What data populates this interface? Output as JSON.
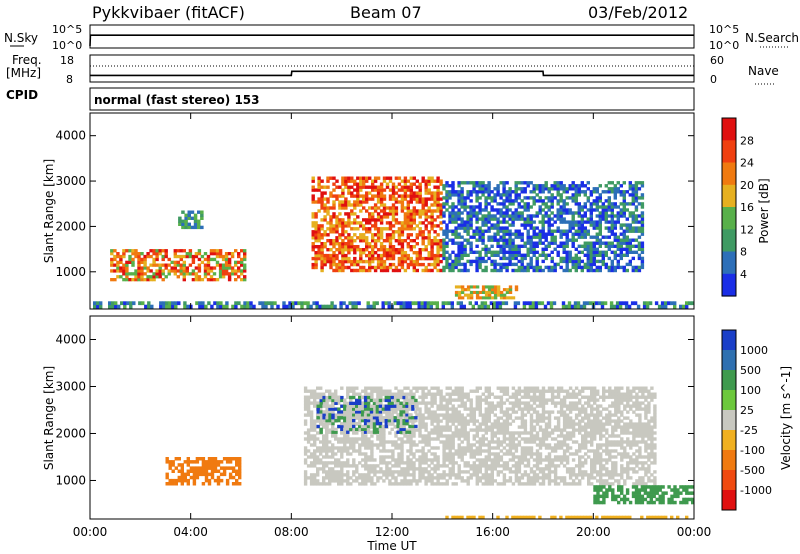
{
  "header": {
    "title": "Pykkvibaer (fitACF)",
    "beam": "Beam 07",
    "date": "03/Feb/2012",
    "cpid_label": "CPID",
    "cpid_text": "normal (fast stereo) 153"
  },
  "nsky_panel": {
    "left_label": "N.Sky",
    "right_label": "N.Search",
    "left_ticks": [
      "10^5",
      "10^0"
    ],
    "right_ticks": [
      "10^5",
      "10^0"
    ]
  },
  "freq_panel": {
    "left_label_1": "Freq.",
    "left_label_2": "[MHz]",
    "right_label": "Nave",
    "left_ticks": [
      "18",
      "8"
    ],
    "right_ticks": [
      "60",
      "0"
    ]
  },
  "x_axis": {
    "label": "Time UT",
    "ticks": [
      "00:00",
      "04:00",
      "08:00",
      "12:00",
      "16:00",
      "20:00",
      "00:00"
    ]
  },
  "y_axis": {
    "label": "Slant Range [km]",
    "ticks": [
      "1000",
      "2000",
      "3000",
      "4000"
    ]
  },
  "colorbars": {
    "power": {
      "label": "Power [dB]",
      "ticks": [
        "4",
        "8",
        "12",
        "16",
        "20",
        "24",
        "28"
      ],
      "colors": [
        "#1a2ee6",
        "#2d6fb8",
        "#3f9a63",
        "#58b04a",
        "#e6b020",
        "#f07a10",
        "#f04010",
        "#e01010"
      ]
    },
    "velocity": {
      "label": "Velocity [m s^-1]",
      "ticks": [
        "1000",
        "500",
        "100",
        "25",
        "-25",
        "-100",
        "-500",
        "-1000"
      ],
      "colors": [
        "#1a3fc8",
        "#2f70b0",
        "#3f9a4e",
        "#6cc83c",
        "#c8c8c0",
        "#f0b020",
        "#f07a10",
        "#f04a10",
        "#e01010"
      ]
    }
  },
  "chart_data": [
    {
      "type": "line",
      "name": "N.Sky / N.Search",
      "x": [
        "00:00",
        "00:01",
        "04:00",
        "08:00",
        "12:00",
        "16:00",
        "20:00",
        "24:00"
      ],
      "y": [
        1,
        1000,
        1000,
        1000,
        1000,
        1000,
        1000,
        1000
      ],
      "ylabel": "N.Sky",
      "ylim_label": [
        "10^0",
        "10^5"
      ]
    },
    {
      "type": "line",
      "name": "Frequency",
      "x": [
        "00:00",
        "08:00",
        "08:01",
        "18:00",
        "18:01",
        "24:00"
      ],
      "y": [
        10,
        10,
        11.8,
        11.8,
        10,
        10
      ],
      "ylim": [
        8,
        18
      ],
      "ylabel": "Freq. [MHz]",
      "nave_dotted": 45,
      "nave_ylim": [
        0,
        60
      ]
    },
    {
      "type": "heatmap",
      "name": "Power",
      "xlabel": "Time UT",
      "ylabel": "Slant Range [km]",
      "xlim_hours": [
        0,
        24
      ],
      "ylim_km": [
        180,
        4500
      ],
      "colorbar_label": "Power [dB]",
      "colorbar_range": [
        0,
        30
      ],
      "regions": [
        {
          "t": [
            0.8,
            6.2
          ],
          "r": [
            800,
            1500
          ],
          "level": "16-28"
        },
        {
          "t": [
            3.5,
            4.5
          ],
          "r": [
            1950,
            2350
          ],
          "level": "8-16"
        },
        {
          "t": [
            8.8,
            14.0
          ],
          "r": [
            1000,
            3100
          ],
          "level": "20-28"
        },
        {
          "t": [
            14.0,
            22.0
          ],
          "r": [
            1000,
            3000
          ],
          "level": "4-12"
        },
        {
          "t": [
            14.5,
            17.0
          ],
          "r": [
            400,
            700
          ],
          "level": "16-24"
        },
        {
          "t": [
            0,
            24
          ],
          "r": [
            200,
            350
          ],
          "level": "4-16"
        }
      ]
    },
    {
      "type": "heatmap",
      "name": "Velocity",
      "xlabel": "Time UT",
      "ylabel": "Slant Range [km]",
      "xlim_hours": [
        0,
        24
      ],
      "ylim_km": [
        180,
        4500
      ],
      "colorbar_label": "Velocity [m s^-1]",
      "colorbar_range": [
        -1000,
        1000
      ],
      "regions": [
        {
          "t": [
            3.0,
            6.0
          ],
          "r": [
            900,
            1500
          ],
          "level": "-100 to -500"
        },
        {
          "t": [
            8.5,
            22.5
          ],
          "r": [
            900,
            3000
          ],
          "level": "-25 to 25"
        },
        {
          "t": [
            9.0,
            13.0
          ],
          "r": [
            2000,
            2800
          ],
          "level": "25 to 500"
        },
        {
          "t": [
            14.0,
            24.0
          ],
          "r": [
            180,
            250
          ],
          "level": "-100"
        },
        {
          "t": [
            20.0,
            24.0
          ],
          "r": [
            500,
            900
          ],
          "level": "25 to 100"
        }
      ]
    }
  ]
}
